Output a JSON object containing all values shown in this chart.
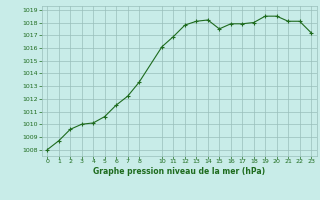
{
  "x": [
    0,
    1,
    2,
    3,
    4,
    5,
    6,
    7,
    8,
    10,
    11,
    12,
    13,
    14,
    15,
    16,
    17,
    18,
    19,
    20,
    21,
    22,
    23
  ],
  "y": [
    1008.0,
    1008.7,
    1009.6,
    1010.0,
    1010.1,
    1010.6,
    1011.5,
    1012.2,
    1013.3,
    1016.1,
    1016.9,
    1017.8,
    1018.1,
    1018.2,
    1017.5,
    1017.9,
    1017.9,
    1018.0,
    1018.5,
    1018.5,
    1018.1,
    1018.1,
    1017.2
  ],
  "ylim_min": 1007.5,
  "ylim_max": 1019.3,
  "xlim_min": -0.5,
  "xlim_max": 23.5,
  "yticks": [
    1008,
    1009,
    1010,
    1011,
    1012,
    1013,
    1014,
    1015,
    1016,
    1017,
    1018,
    1019
  ],
  "xticks": [
    0,
    1,
    2,
    3,
    4,
    5,
    6,
    7,
    8,
    10,
    11,
    12,
    13,
    14,
    15,
    16,
    17,
    18,
    19,
    20,
    21,
    22,
    23
  ],
  "xlabel": "Graphe pression niveau de la mer (hPa)",
  "line_color": "#1e6b1e",
  "marker_color": "#1e6b1e",
  "bg_color": "#c8ece8",
  "grid_color": "#9abfbb",
  "tick_label_color": "#1e6b1e",
  "xlabel_color": "#1e6b1e",
  "fig_bg": "#c8ece8"
}
